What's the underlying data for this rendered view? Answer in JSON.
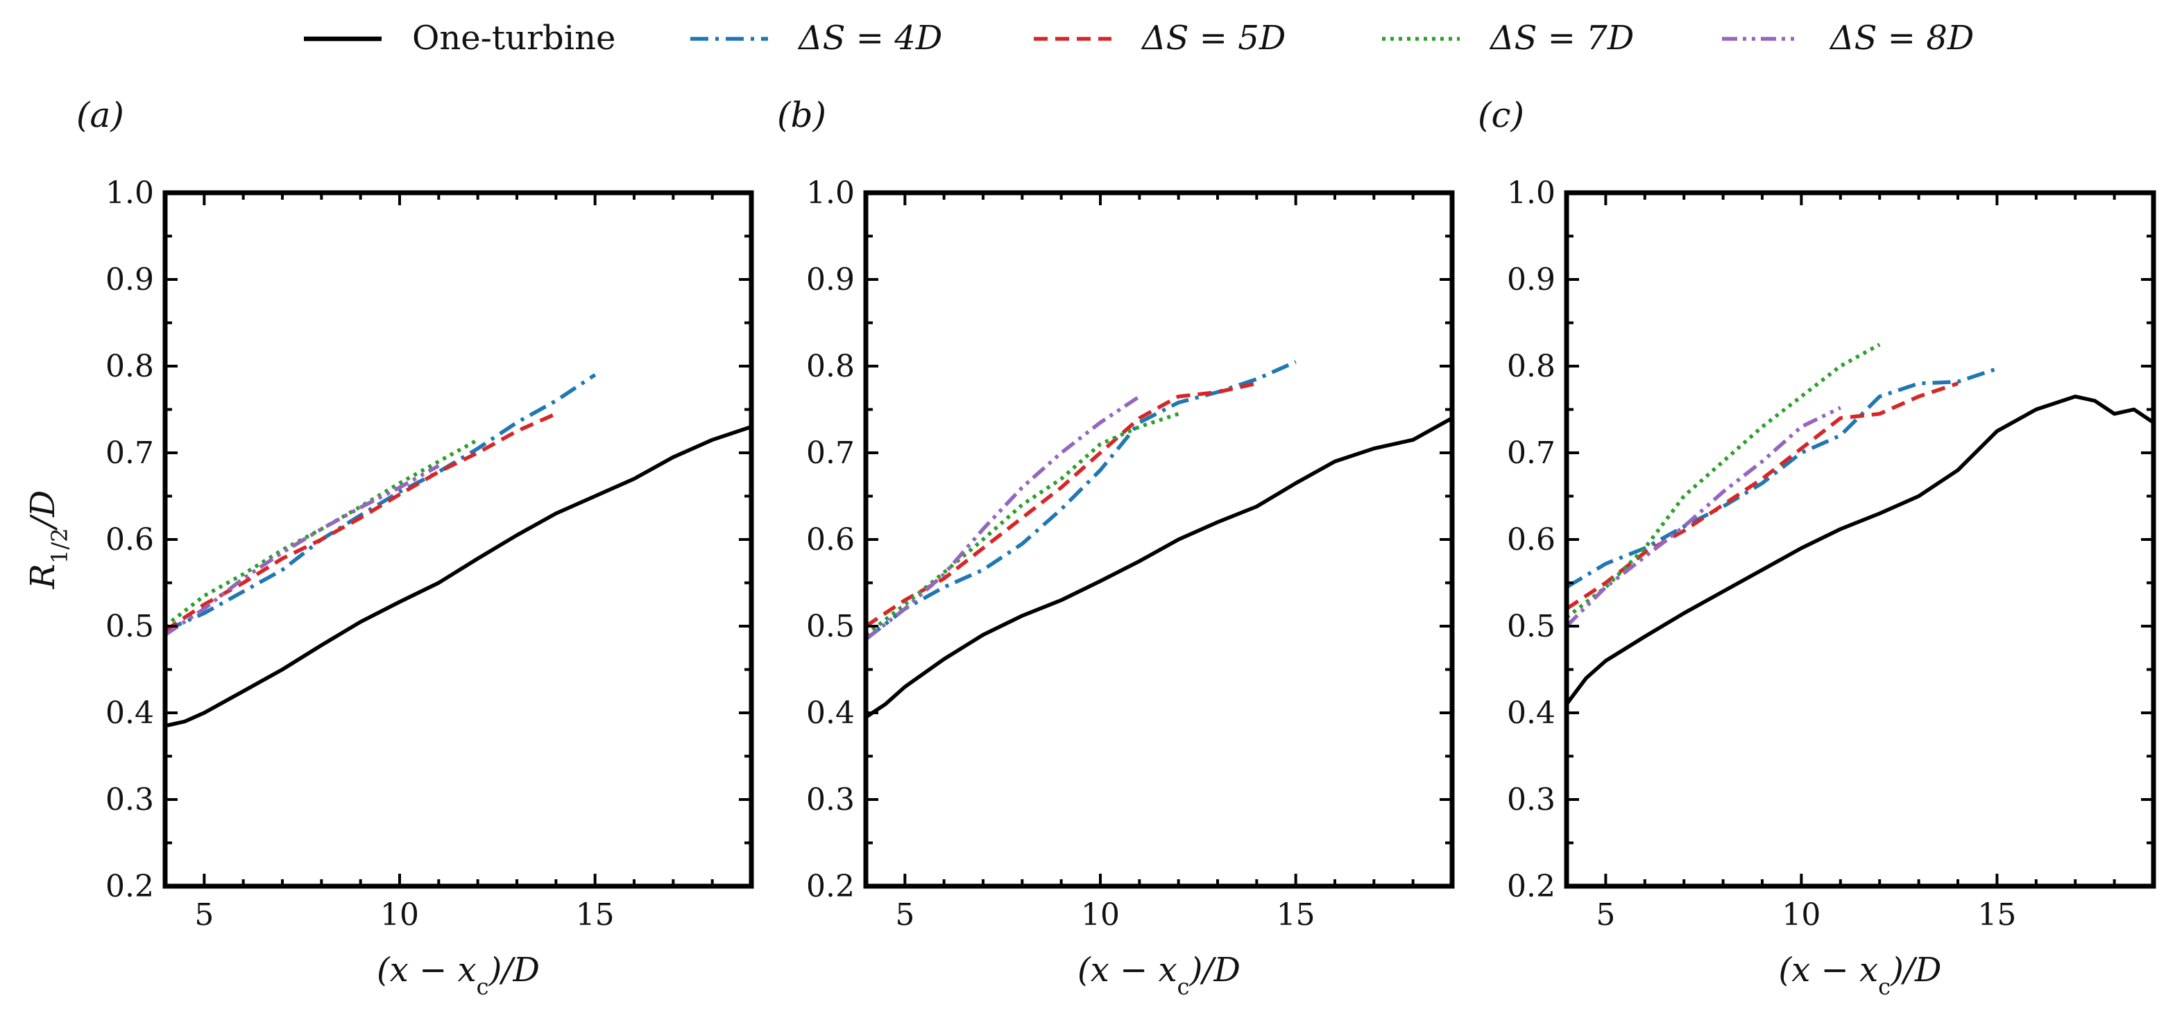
{
  "chart_data": [
    {
      "type": "line",
      "panel_label": "(a)",
      "xlabel": "(x − x_c)/D",
      "ylabel": "R_{1/2}/D",
      "xlim": [
        4,
        19
      ],
      "ylim": [
        0.2,
        1.0
      ],
      "xticks": [
        5,
        10,
        15
      ],
      "yticks": [
        0.2,
        0.3,
        0.4,
        0.5,
        0.6,
        0.7,
        0.8,
        0.9,
        1.0
      ],
      "grid": false,
      "series": [
        {
          "name": "One-turbine",
          "x": [
            4,
            4.5,
            5,
            6,
            7,
            8,
            9,
            10,
            11,
            12,
            13,
            14,
            15,
            16,
            17,
            18,
            19
          ],
          "y": [
            0.385,
            0.39,
            0.4,
            0.425,
            0.45,
            0.478,
            0.505,
            0.528,
            0.55,
            0.578,
            0.605,
            0.63,
            0.65,
            0.67,
            0.695,
            0.715,
            0.73
          ]
        },
        {
          "name": "ΔS = 4D",
          "x": [
            4,
            5,
            6,
            7,
            8,
            9,
            10,
            11,
            12,
            13,
            14,
            15
          ],
          "y": [
            0.495,
            0.515,
            0.54,
            0.565,
            0.6,
            0.628,
            0.655,
            0.678,
            0.705,
            0.735,
            0.76,
            0.79
          ]
        },
        {
          "name": "ΔS = 5D",
          "x": [
            4,
            5,
            6,
            7,
            8,
            9,
            10,
            11,
            12,
            13,
            14
          ],
          "y": [
            0.495,
            0.525,
            0.55,
            0.578,
            0.6,
            0.625,
            0.652,
            0.678,
            0.7,
            0.725,
            0.745
          ]
        },
        {
          "name": "ΔS = 7D",
          "x": [
            4,
            5,
            6,
            7,
            8,
            9,
            10,
            11,
            12
          ],
          "y": [
            0.5,
            0.535,
            0.56,
            0.588,
            0.612,
            0.638,
            0.665,
            0.69,
            0.715
          ]
        },
        {
          "name": "ΔS = 8D",
          "x": [
            4,
            5,
            6,
            7,
            8,
            9,
            10,
            11
          ],
          "y": [
            0.49,
            0.52,
            0.555,
            0.585,
            0.612,
            0.637,
            0.66,
            0.685
          ]
        }
      ]
    },
    {
      "type": "line",
      "panel_label": "(b)",
      "xlabel": "(x − x_c)/D",
      "ylabel": "",
      "xlim": [
        4,
        19
      ],
      "ylim": [
        0.2,
        1.0
      ],
      "xticks": [
        5,
        10,
        15
      ],
      "yticks": [
        0.2,
        0.3,
        0.4,
        0.5,
        0.6,
        0.7,
        0.8,
        0.9,
        1.0
      ],
      "grid": false,
      "series": [
        {
          "name": "One-turbine",
          "x": [
            4,
            4.5,
            5,
            6,
            7,
            8,
            9,
            10,
            11,
            12,
            13,
            14,
            15,
            16,
            17,
            18,
            19
          ],
          "y": [
            0.395,
            0.41,
            0.43,
            0.462,
            0.49,
            0.512,
            0.53,
            0.552,
            0.575,
            0.6,
            0.62,
            0.638,
            0.665,
            0.69,
            0.705,
            0.715,
            0.74
          ]
        },
        {
          "name": "ΔS = 4D",
          "x": [
            4,
            5,
            6,
            7,
            8,
            9,
            10,
            11,
            12,
            13,
            14,
            15
          ],
          "y": [
            0.485,
            0.52,
            0.545,
            0.565,
            0.595,
            0.635,
            0.68,
            0.735,
            0.758,
            0.77,
            0.785,
            0.805
          ]
        },
        {
          "name": "ΔS = 5D",
          "x": [
            4,
            5,
            6,
            7,
            8,
            9,
            10,
            11,
            12,
            13,
            14
          ],
          "y": [
            0.5,
            0.53,
            0.555,
            0.59,
            0.625,
            0.66,
            0.7,
            0.74,
            0.765,
            0.77,
            0.78
          ]
        },
        {
          "name": "ΔS = 7D",
          "x": [
            4,
            5,
            6,
            7,
            8,
            9,
            10,
            11,
            12
          ],
          "y": [
            0.49,
            0.525,
            0.562,
            0.6,
            0.64,
            0.67,
            0.71,
            0.73,
            0.745
          ]
        },
        {
          "name": "ΔS = 8D",
          "x": [
            4,
            5,
            6,
            7,
            8,
            9,
            10,
            11
          ],
          "y": [
            0.485,
            0.52,
            0.56,
            0.612,
            0.66,
            0.7,
            0.735,
            0.765
          ]
        }
      ]
    },
    {
      "type": "line",
      "panel_label": "(c)",
      "xlabel": "(x − x_c)/D",
      "ylabel": "",
      "xlim": [
        4,
        19
      ],
      "ylim": [
        0.2,
        1.0
      ],
      "xticks": [
        5,
        10,
        15
      ],
      "yticks": [
        0.2,
        0.3,
        0.4,
        0.5,
        0.6,
        0.7,
        0.8,
        0.9,
        1.0
      ],
      "grid": false,
      "series": [
        {
          "name": "One-turbine",
          "x": [
            4,
            4.5,
            5,
            6,
            7,
            8,
            9,
            10,
            11,
            12,
            13,
            14,
            15,
            16,
            17,
            17.5,
            18,
            18.5,
            19
          ],
          "y": [
            0.41,
            0.44,
            0.46,
            0.488,
            0.515,
            0.54,
            0.565,
            0.59,
            0.612,
            0.63,
            0.65,
            0.68,
            0.725,
            0.75,
            0.765,
            0.76,
            0.745,
            0.75,
            0.735
          ]
        },
        {
          "name": "ΔS = 4D",
          "x": [
            4,
            5,
            6,
            7,
            8,
            9,
            10,
            11,
            12,
            13,
            14,
            15
          ],
          "y": [
            0.545,
            0.572,
            0.59,
            0.615,
            0.638,
            0.665,
            0.7,
            0.72,
            0.765,
            0.78,
            0.782,
            0.797
          ]
        },
        {
          "name": "ΔS = 5D",
          "x": [
            4,
            5,
            6,
            7,
            8,
            9,
            10,
            11,
            12,
            13,
            14
          ],
          "y": [
            0.52,
            0.55,
            0.585,
            0.61,
            0.64,
            0.67,
            0.705,
            0.74,
            0.745,
            0.765,
            0.78
          ]
        },
        {
          "name": "ΔS = 7D",
          "x": [
            4,
            5,
            6,
            7,
            8,
            9,
            10,
            11,
            12
          ],
          "y": [
            0.51,
            0.545,
            0.59,
            0.65,
            0.69,
            0.73,
            0.765,
            0.8,
            0.825
          ]
        },
        {
          "name": "ΔS = 8D",
          "x": [
            4,
            5,
            6,
            7,
            8,
            9,
            10,
            11
          ],
          "y": [
            0.5,
            0.545,
            0.58,
            0.615,
            0.655,
            0.69,
            0.73,
            0.752
          ]
        }
      ]
    }
  ],
  "legend": {
    "placement": "top-center",
    "entries": [
      {
        "label": "One-turbine",
        "color": "#000000",
        "dash": "solid"
      },
      {
        "label": "ΔS = 4D",
        "color": "#1f77b4",
        "dash": "dashdot"
      },
      {
        "label": "ΔS = 5D",
        "color": "#d62728",
        "dash": "dashed"
      },
      {
        "label": "ΔS = 7D",
        "color": "#2ca02c",
        "dash": "dotted"
      },
      {
        "label": "ΔS = 8D",
        "color": "#9467bd",
        "dash": "dashdotdot"
      }
    ]
  }
}
